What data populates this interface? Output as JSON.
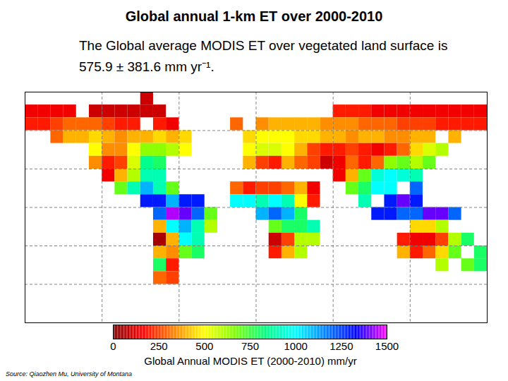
{
  "chart_data": {
    "type": "heatmap",
    "title": "Global annual 1-km ET over 2000-2010",
    "subtitle": "The Global average MODIS ET over vegetated land surface is 575.9 ± 381.6 mm yr⁻¹.",
    "source": "Source: Qiaozhen Mu, University of Montana",
    "xlim": [
      -180,
      180
    ],
    "ylim": [
      -90,
      90
    ],
    "xticks": [
      -120,
      -60,
      0,
      60,
      120
    ],
    "yticks": [
      -60,
      -30,
      0,
      30,
      60
    ],
    "grid": true,
    "tick_labels": false,
    "lon": [
      -175,
      -165,
      -155,
      -145,
      -135,
      -125,
      -115,
      -105,
      -95,
      -85,
      -75,
      -65,
      -55,
      -45,
      -35,
      -25,
      -15,
      -5,
      5,
      15,
      25,
      35,
      45,
      55,
      65,
      75,
      85,
      95,
      105,
      115,
      125,
      135,
      145,
      155,
      165,
      175
    ],
    "lat": [
      85,
      75,
      65,
      55,
      45,
      35,
      25,
      15,
      5,
      -5,
      -15,
      -25,
      -35,
      -45,
      -55
    ],
    "values": [
      [
        null,
        null,
        null,
        null,
        null,
        null,
        null,
        null,
        null,
        100,
        null,
        null,
        null,
        null,
        null,
        null,
        null,
        null,
        null,
        null,
        null,
        null,
        null,
        null,
        null,
        null,
        null,
        null,
        null,
        null,
        null,
        null,
        null,
        null,
        null,
        null
      ],
      [
        150,
        150,
        150,
        150,
        null,
        100,
        100,
        100,
        100,
        100,
        100,
        null,
        null,
        null,
        null,
        null,
        null,
        null,
        null,
        null,
        null,
        null,
        null,
        null,
        200,
        200,
        200,
        150,
        150,
        150,
        150,
        150,
        150,
        150,
        150,
        150
      ],
      [
        200,
        200,
        250,
        300,
        300,
        300,
        250,
        200,
        200,
        null,
        200,
        150,
        null,
        null,
        null,
        null,
        300,
        null,
        350,
        400,
        400,
        400,
        400,
        350,
        350,
        350,
        300,
        300,
        300,
        250,
        250,
        250,
        200,
        200,
        200,
        200
      ],
      [
        null,
        null,
        300,
        400,
        400,
        450,
        400,
        350,
        400,
        400,
        450,
        400,
        450,
        null,
        null,
        null,
        null,
        450,
        500,
        500,
        500,
        450,
        450,
        400,
        400,
        350,
        400,
        400,
        350,
        350,
        400,
        400,
        null,
        400,
        null,
        null
      ],
      [
        null,
        null,
        null,
        null,
        null,
        500,
        350,
        350,
        500,
        650,
        650,
        600,
        500,
        null,
        null,
        null,
        null,
        500,
        550,
        550,
        500,
        400,
        250,
        200,
        200,
        250,
        200,
        150,
        200,
        300,
        450,
        550,
        600,
        null,
        null,
        null
      ],
      [
        null,
        null,
        null,
        null,
        null,
        350,
        200,
        250,
        550,
        850,
        800,
        null,
        null,
        null,
        null,
        null,
        null,
        400,
        250,
        200,
        400,
        300,
        250,
        100,
        150,
        300,
        200,
        300,
        650,
        700,
        600,
        700,
        null,
        null,
        null,
        null
      ],
      [
        null,
        null,
        null,
        null,
        null,
        null,
        150,
        400,
        600,
        900,
        900,
        null,
        null,
        null,
        null,
        null,
        null,
        null,
        null,
        null,
        null,
        null,
        null,
        null,
        150,
        400,
        700,
        950,
        1000,
        950,
        900,
        null,
        null,
        null,
        null,
        null
      ],
      [
        null,
        null,
        null,
        null,
        null,
        null,
        null,
        700,
        900,
        1100,
        900,
        700,
        null,
        null,
        null,
        null,
        300,
        200,
        250,
        250,
        300,
        400,
        150,
        null,
        null,
        700,
        800,
        1000,
        1000,
        null,
        1200,
        null,
        null,
        null,
        null,
        null
      ],
      [
        null,
        null,
        null,
        null,
        null,
        null,
        null,
        null,
        null,
        1300,
        1300,
        1100,
        1300,
        1300,
        null,
        null,
        1000,
        1000,
        900,
        1000,
        900,
        500,
        200,
        null,
        null,
        null,
        900,
        null,
        1300,
        1400,
        1300,
        null,
        null,
        null,
        null,
        null
      ],
      [
        null,
        null,
        null,
        null,
        null,
        null,
        null,
        null,
        null,
        null,
        1200,
        1450,
        1400,
        1200,
        700,
        null,
        null,
        null,
        1100,
        1200,
        1100,
        800,
        null,
        null,
        null,
        null,
        null,
        1300,
        1300,
        1200,
        1200,
        1400,
        1400,
        1200,
        null,
        null
      ],
      [
        null,
        null,
        null,
        null,
        null,
        null,
        null,
        null,
        null,
        null,
        400,
        1000,
        1100,
        900,
        600,
        null,
        null,
        null,
        null,
        700,
        800,
        800,
        900,
        null,
        null,
        null,
        null,
        null,
        null,
        null,
        450,
        450,
        600,
        null,
        null,
        null
      ],
      [
        null,
        null,
        null,
        null,
        null,
        null,
        null,
        null,
        null,
        null,
        50,
        400,
        1000,
        900,
        null,
        null,
        null,
        null,
        null,
        100,
        250,
        600,
        600,
        null,
        null,
        null,
        null,
        null,
        null,
        200,
        150,
        150,
        250,
        600,
        800,
        null
      ],
      [
        null,
        null,
        null,
        null,
        null,
        null,
        null,
        null,
        null,
        null,
        400,
        350,
        700,
        800,
        null,
        null,
        null,
        null,
        null,
        200,
        400,
        600,
        null,
        null,
        null,
        null,
        null,
        null,
        null,
        400,
        200,
        300,
        450,
        700,
        null,
        800
      ],
      [
        null,
        null,
        null,
        null,
        null,
        null,
        null,
        null,
        null,
        null,
        800,
        200,
        null,
        null,
        null,
        null,
        null,
        null,
        null,
        null,
        null,
        null,
        null,
        null,
        null,
        null,
        null,
        null,
        null,
        null,
        null,
        null,
        600,
        null,
        700,
        800
      ],
      [
        null,
        null,
        null,
        null,
        null,
        null,
        null,
        null,
        null,
        null,
        300,
        250,
        null,
        null,
        null,
        null,
        null,
        null,
        null,
        null,
        null,
        null,
        null,
        null,
        null,
        null,
        null,
        null,
        null,
        null,
        null,
        null,
        null,
        null,
        null,
        null
      ]
    ],
    "colorbar": {
      "range": [
        0,
        1500
      ],
      "ticks": [
        0,
        250,
        500,
        750,
        1000,
        1250,
        1500
      ],
      "label": "Global Annual MODIS ET (2000-2010) mm/yr"
    }
  }
}
